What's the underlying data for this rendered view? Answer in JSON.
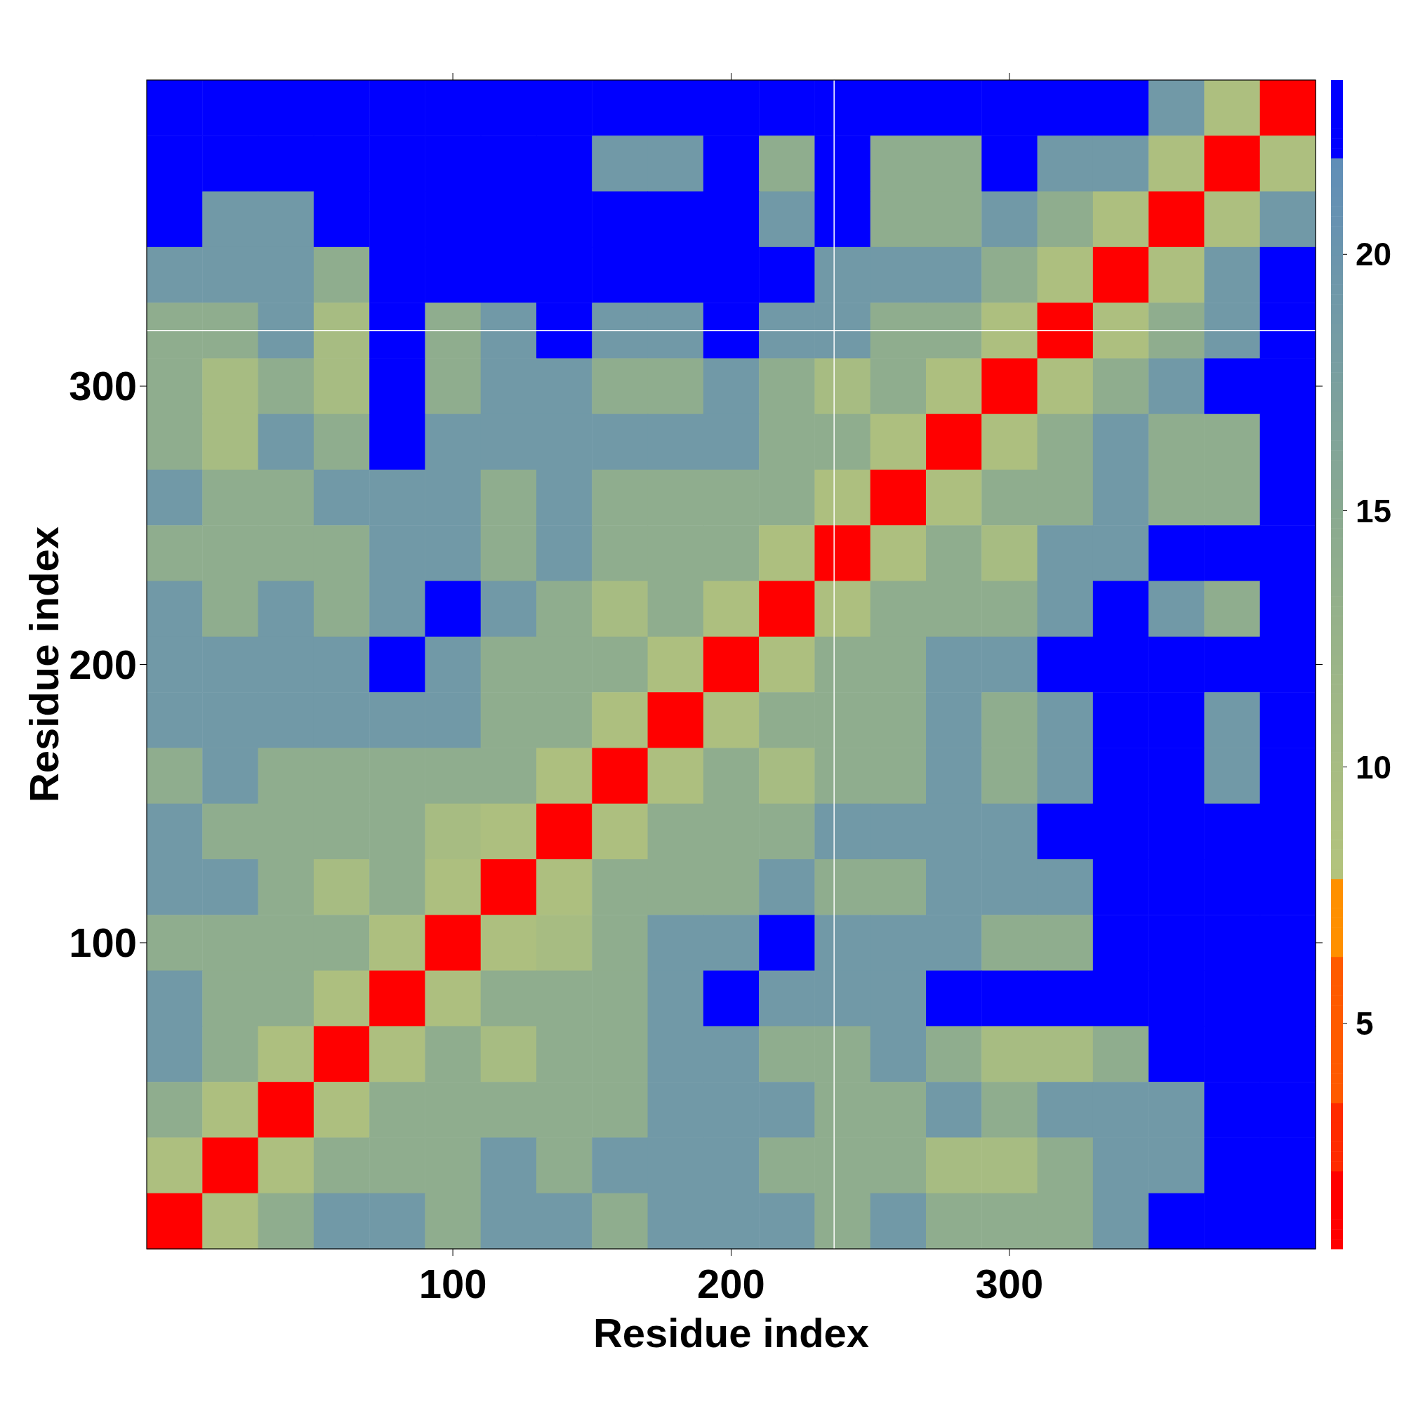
{
  "chart_data": {
    "type": "heatmap",
    "xlabel": "Residue index",
    "ylabel": "Residue index",
    "clim": [
      0.6,
      23.4
    ],
    "cticks": [
      5,
      10,
      15,
      20
    ],
    "categories": [
      null,
      null,
      null,
      null,
      null,
      "100",
      null,
      null,
      null,
      null,
      "200",
      null,
      null,
      null,
      null,
      "300",
      null,
      null,
      null,
      null,
      null
    ],
    "y_categories": [
      null,
      null,
      null,
      null,
      null,
      "300",
      null,
      null,
      null,
      null,
      "200",
      null,
      null,
      null,
      null,
      "100",
      null,
      null,
      null,
      null,
      null
    ],
    "cells": [
      [
        23,
        23,
        23,
        23,
        23,
        23,
        23,
        23,
        23,
        23,
        23,
        23,
        23,
        23,
        23,
        23,
        23,
        23,
        19,
        9,
        2
      ],
      [
        23,
        23,
        23,
        23,
        23,
        23,
        23,
        23,
        19,
        19,
        23,
        14,
        23,
        14,
        14,
        23,
        19,
        19,
        9,
        2,
        9
      ],
      [
        23,
        19,
        19,
        23,
        23,
        23,
        23,
        23,
        23,
        23,
        23,
        19,
        23,
        14,
        14,
        19,
        14,
        9,
        2,
        9,
        19
      ],
      [
        19,
        19,
        19,
        14,
        23,
        23,
        23,
        23,
        23,
        23,
        23,
        23,
        19,
        19,
        19,
        14,
        9,
        2,
        9,
        19,
        23
      ],
      [
        14,
        14,
        19,
        10,
        23,
        14,
        19,
        23,
        19,
        19,
        23,
        19,
        19,
        14,
        14,
        9,
        2,
        9,
        14,
        19,
        23
      ],
      [
        14,
        10,
        14,
        10,
        23,
        14,
        19,
        19,
        14,
        14,
        19,
        14,
        10,
        14,
        9,
        2,
        9,
        14,
        19,
        23,
        23
      ],
      [
        14,
        10,
        19,
        14,
        23,
        19,
        19,
        19,
        19,
        19,
        19,
        14,
        14,
        9,
        2,
        9,
        14,
        19,
        14,
        14,
        23
      ],
      [
        19,
        14,
        14,
        19,
        19,
        19,
        14,
        19,
        14,
        14,
        14,
        14,
        9,
        2,
        9,
        14,
        14,
        19,
        14,
        14,
        23
      ],
      [
        14,
        14,
        14,
        14,
        19,
        19,
        14,
        19,
        14,
        14,
        14,
        9,
        2,
        9,
        14,
        10,
        19,
        19,
        23,
        23,
        23
      ],
      [
        19,
        14,
        19,
        14,
        19,
        23,
        19,
        14,
        10,
        14,
        9,
        2,
        9,
        14,
        14,
        14,
        19,
        23,
        19,
        14,
        23
      ],
      [
        19,
        19,
        19,
        19,
        23,
        19,
        14,
        14,
        14,
        9,
        2,
        9,
        14,
        14,
        19,
        19,
        23,
        23,
        23,
        23,
        23
      ],
      [
        19,
        19,
        19,
        19,
        19,
        19,
        14,
        14,
        9,
        2,
        9,
        14,
        14,
        14,
        19,
        14,
        19,
        23,
        23,
        19,
        23
      ],
      [
        14,
        19,
        14,
        14,
        14,
        14,
        14,
        9,
        2,
        9,
        14,
        10,
        14,
        14,
        19,
        14,
        19,
        23,
        23,
        19,
        23
      ],
      [
        19,
        14,
        14,
        14,
        14,
        10,
        9,
        2,
        9,
        14,
        14,
        14,
        19,
        19,
        19,
        19,
        23,
        23,
        23,
        23,
        23
      ],
      [
        19,
        19,
        14,
        10,
        14,
        9,
        2,
        9,
        14,
        14,
        14,
        19,
        14,
        14,
        19,
        19,
        19,
        23,
        23,
        23,
        23
      ],
      [
        14,
        14,
        14,
        14,
        9,
        2,
        9,
        10,
        14,
        19,
        19,
        23,
        19,
        19,
        19,
        14,
        14,
        23,
        23,
        23,
        23
      ],
      [
        19,
        14,
        14,
        9,
        2,
        9,
        14,
        14,
        14,
        19,
        23,
        19,
        19,
        19,
        23,
        23,
        23,
        23,
        23,
        23,
        23
      ],
      [
        19,
        14,
        9,
        2,
        9,
        14,
        10,
        14,
        14,
        19,
        19,
        14,
        14,
        19,
        14,
        10,
        10,
        14,
        23,
        23,
        23
      ],
      [
        14,
        9,
        2,
        9,
        14,
        14,
        14,
        14,
        14,
        19,
        19,
        19,
        14,
        14,
        19,
        14,
        19,
        19,
        19,
        23,
        23
      ],
      [
        9,
        2,
        9,
        14,
        14,
        14,
        19,
        14,
        19,
        19,
        19,
        14,
        14,
        14,
        10,
        10,
        14,
        19,
        19,
        23,
        23
      ],
      [
        2,
        9,
        14,
        19,
        19,
        14,
        19,
        19,
        14,
        19,
        19,
        19,
        14,
        19,
        14,
        14,
        14,
        19,
        23,
        23,
        23
      ]
    ]
  }
}
